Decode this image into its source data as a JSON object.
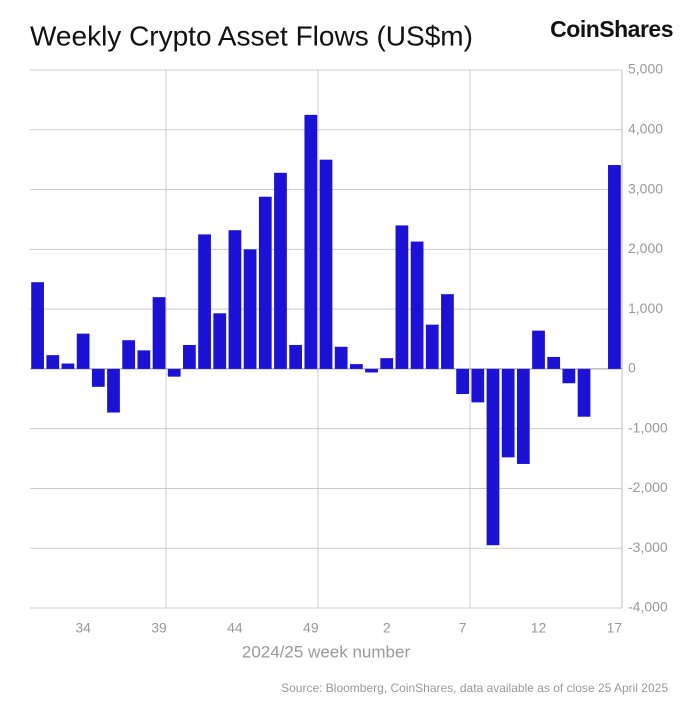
{
  "brand": "CoinShares",
  "chart_data": {
    "type": "bar",
    "title": "Weekly Crypto Asset Flows (US$m)",
    "x_label": "2024/25 week number",
    "source": "Source: Bloomberg, CoinShares, data available as of close 25 April 2025",
    "categories": [
      null,
      null,
      null,
      "34",
      null,
      null,
      null,
      null,
      "39",
      null,
      null,
      null,
      null,
      "44",
      null,
      null,
      null,
      null,
      "49",
      null,
      null,
      null,
      null,
      "2",
      null,
      null,
      null,
      null,
      "7",
      null,
      null,
      null,
      null,
      "12",
      null,
      null,
      null,
      null,
      "17"
    ],
    "values": [
      1450,
      230,
      90,
      590,
      -300,
      -730,
      480,
      310,
      1200,
      -130,
      400,
      2250,
      930,
      2320,
      2000,
      2880,
      3280,
      400,
      4250,
      3500,
      370,
      80,
      -60,
      180,
      2400,
      2130,
      740,
      1250,
      -420,
      -560,
      -2950,
      -1480,
      -1590,
      640,
      200,
      -240,
      -800,
      0,
      3410
    ],
    "color": "#1c12d6",
    "ylim": [
      -4000,
      5000
    ],
    "yticks": [
      {
        "value": -4000,
        "label": "-4,000"
      },
      {
        "value": -3000,
        "label": "-3,000"
      },
      {
        "value": -2000,
        "label": "-2,000"
      },
      {
        "value": -1000,
        "label": "-1,000"
      },
      0,
      {
        "value": 1000,
        "label": "1,000"
      },
      {
        "value": 2000,
        "label": "2,000"
      },
      {
        "value": 3000,
        "label": "3,000"
      },
      {
        "value": 4000,
        "label": "4,000"
      },
      {
        "value": 5000,
        "label": "5,000"
      }
    ],
    "grid": true
  }
}
